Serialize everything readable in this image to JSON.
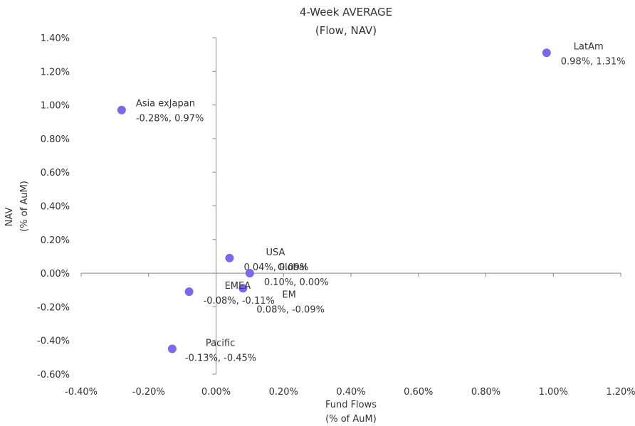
{
  "chart_data": {
    "type": "scatter",
    "title": [
      "4-Week AVERAGE",
      "(Flow, NAV)"
    ],
    "xlabel": [
      "Fund Flows",
      "(% of AuM)"
    ],
    "ylabel": [
      "NAV",
      "(% of AuM)"
    ],
    "xlim": [
      -0.4,
      1.2
    ],
    "ylim": [
      -0.6,
      1.4
    ],
    "x_ticks": [
      -0.4,
      -0.2,
      0.0,
      0.2,
      0.4,
      0.6,
      0.8,
      1.0,
      1.2
    ],
    "x_tick_labels": [
      "-0.40%",
      "-0.20%",
      "0.00%",
      "0.20%",
      "0.40%",
      "0.60%",
      "0.80%",
      "1.00%",
      "1.20%"
    ],
    "y_ticks": [
      1.4,
      1.2,
      1.0,
      0.8,
      0.6,
      0.4,
      0.2,
      0.0,
      -0.2,
      -0.4,
      -0.6
    ],
    "y_tick_labels": [
      "1.40%",
      "1.20%",
      "1.00%",
      "0.80%",
      "0.60%",
      "0.40%",
      "0.20%",
      "0.00%",
      "-0.20%",
      "-0.40%",
      "-0.60%"
    ],
    "point_color": "#7b68ee",
    "points": [
      {
        "name": "LatAm",
        "x": 0.98,
        "y": 1.31,
        "label": "0.98%, 1.31%"
      },
      {
        "name": "Asia exJapan",
        "x": -0.28,
        "y": 0.97,
        "label": "-0.28%, 0.97%"
      },
      {
        "name": "USA",
        "x": 0.04,
        "y": 0.09,
        "label": "0.04%, 0.09%"
      },
      {
        "name": "Global",
        "x": 0.1,
        "y": 0.0,
        "label": "0.10%, 0.00%"
      },
      {
        "name": "EM",
        "x": 0.08,
        "y": -0.09,
        "label": "0.08%, -0.09%"
      },
      {
        "name": "EMEA",
        "x": -0.08,
        "y": -0.11,
        "label": "-0.08%, -0.11%"
      },
      {
        "name": "Pacific",
        "x": -0.13,
        "y": -0.45,
        "label": "-0.13%, -0.45%"
      }
    ]
  }
}
